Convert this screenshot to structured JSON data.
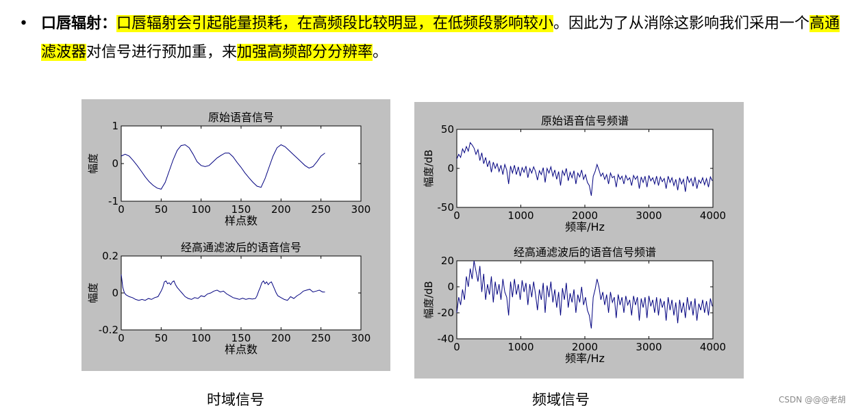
{
  "bullet": {
    "symbol": "•",
    "term": "口唇辐射",
    "colon": "：",
    "seg1_hl": "口唇辐射会引起能量损耗，在高频段比较明显，在低频段影响较小",
    "seg2": "。因此为了从消除这影响我们采用一个",
    "seg3_hl": "高通滤波器",
    "seg4": "对信号进行预加重，来",
    "seg5_hl": "加强高频部分分辨率",
    "seg6": "。"
  },
  "captions": {
    "time_domain": "时域信号",
    "freq_domain": "频域信号"
  },
  "watermark": "CSDN @@@老胡",
  "colors": {
    "panel_bg": "#c0c0c0",
    "line": "#00007f",
    "highlight": "#ffff00"
  },
  "chart_data": [
    {
      "type": "line",
      "title": "原始语音信号",
      "xlabel": "样点数",
      "ylabel": "幅度",
      "xlim": [
        0,
        300
      ],
      "ylim": [
        -1,
        1
      ],
      "xticks": [
        "0",
        "50",
        "100",
        "150",
        "200",
        "250",
        "300"
      ],
      "yticks": [
        "1",
        "0",
        "-1"
      ],
      "series": [
        {
          "x": [
            0,
            5,
            10,
            15,
            20,
            25,
            30,
            35,
            40,
            45,
            50,
            55,
            60,
            65,
            70,
            75,
            80,
            85,
            90,
            95,
            100,
            105,
            110,
            115,
            120,
            125,
            130,
            135,
            140,
            145,
            150,
            155,
            160,
            165,
            170,
            175,
            180,
            185,
            190,
            195,
            200,
            205,
            210,
            215,
            220,
            225,
            230,
            235,
            240,
            245,
            250,
            255
          ],
          "y": [
            0.2,
            0.25,
            0.2,
            0.08,
            -0.05,
            -0.2,
            -0.35,
            -0.48,
            -0.58,
            -0.65,
            -0.68,
            -0.5,
            -0.2,
            0.1,
            0.35,
            0.48,
            0.5,
            0.42,
            0.25,
            0.05,
            -0.05,
            -0.08,
            -0.05,
            0.05,
            0.15,
            0.22,
            0.28,
            0.28,
            0.18,
            0.03,
            -0.1,
            -0.25,
            -0.38,
            -0.5,
            -0.6,
            -0.63,
            -0.4,
            -0.1,
            0.2,
            0.42,
            0.5,
            0.45,
            0.35,
            0.25,
            0.15,
            0.05,
            -0.05,
            -0.12,
            -0.08,
            0.05,
            0.2,
            0.28
          ]
        }
      ]
    },
    {
      "type": "line",
      "title": "经高通滤波后的语音信号",
      "xlabel": "样点数",
      "ylabel": "幅度",
      "xlim": [
        0,
        300
      ],
      "ylim": [
        -0.2,
        0.2
      ],
      "xticks": [
        "0",
        "50",
        "100",
        "150",
        "200",
        "250",
        "300"
      ],
      "yticks": [
        "0.2",
        "0",
        "-0.2"
      ],
      "series": [
        {
          "x": [
            0,
            2,
            4,
            6,
            8,
            10,
            14,
            18,
            22,
            26,
            30,
            34,
            38,
            42,
            46,
            50,
            52,
            54,
            56,
            58,
            60,
            62,
            64,
            66,
            68,
            70,
            72,
            74,
            76,
            78,
            80,
            84,
            88,
            92,
            96,
            100,
            104,
            108,
            112,
            116,
            120,
            124,
            128,
            132,
            136,
            140,
            144,
            148,
            152,
            156,
            160,
            164,
            168,
            170,
            172,
            174,
            176,
            178,
            180,
            182,
            184,
            186,
            188,
            190,
            192,
            194,
            196,
            200,
            204,
            208,
            212,
            216,
            220,
            224,
            228,
            232,
            236,
            240,
            244,
            248,
            252,
            255
          ],
          "y": [
            0.1,
            0.03,
            0.0,
            -0.01,
            -0.015,
            -0.02,
            -0.025,
            -0.035,
            -0.04,
            -0.035,
            -0.04,
            -0.03,
            -0.035,
            -0.025,
            -0.02,
            0.01,
            0.03,
            0.06,
            0.065,
            0.05,
            0.055,
            0.045,
            0.06,
            0.065,
            0.045,
            0.03,
            0.02,
            0.01,
            0.0,
            -0.01,
            -0.02,
            -0.03,
            -0.035,
            -0.025,
            -0.03,
            -0.015,
            -0.02,
            -0.005,
            0.0,
            0.01,
            0.015,
            0.005,
            0.01,
            -0.005,
            -0.015,
            -0.025,
            -0.03,
            -0.035,
            -0.028,
            -0.035,
            -0.03,
            -0.033,
            -0.03,
            -0.015,
            0.01,
            0.03,
            0.055,
            0.065,
            0.05,
            0.06,
            0.045,
            0.055,
            0.06,
            0.04,
            0.02,
            0.0,
            -0.015,
            -0.025,
            -0.035,
            -0.04,
            -0.02,
            -0.03,
            -0.015,
            -0.005,
            0.01,
            0.015,
            0.02,
            0.005,
            0.01,
            0.015,
            0.005,
            0.005
          ]
        }
      ]
    },
    {
      "type": "line",
      "title": "原始语音信号频谱",
      "xlabel": "频率/Hz",
      "ylabel": "幅度/dB",
      "xlim": [
        0,
        4000
      ],
      "ylim": [
        -50,
        50
      ],
      "xticks": [
        "0",
        "1000",
        "2000",
        "3000",
        "4000"
      ],
      "yticks": [
        "50",
        "0",
        "-50"
      ],
      "series": [
        {
          "x": [
            0,
            30,
            60,
            90,
            120,
            150,
            180,
            210,
            240,
            270,
            300,
            330,
            360,
            390,
            420,
            450,
            480,
            510,
            540,
            570,
            600,
            630,
            660,
            690,
            720,
            750,
            780,
            810,
            840,
            870,
            900,
            930,
            960,
            990,
            1020,
            1050,
            1080,
            1110,
            1140,
            1170,
            1200,
            1230,
            1260,
            1290,
            1320,
            1350,
            1380,
            1410,
            1440,
            1470,
            1500,
            1530,
            1560,
            1590,
            1620,
            1650,
            1680,
            1710,
            1740,
            1770,
            1800,
            1830,
            1860,
            1890,
            1920,
            1950,
            1980,
            2010,
            2040,
            2070,
            2100,
            2130,
            2160,
            2190,
            2220,
            2250,
            2280,
            2310,
            2340,
            2370,
            2400,
            2430,
            2460,
            2490,
            2520,
            2550,
            2580,
            2610,
            2640,
            2670,
            2700,
            2730,
            2760,
            2790,
            2820,
            2850,
            2880,
            2910,
            2940,
            2970,
            3000,
            3030,
            3060,
            3090,
            3120,
            3150,
            3180,
            3210,
            3240,
            3270,
            3300,
            3330,
            3360,
            3390,
            3420,
            3450,
            3480,
            3510,
            3540,
            3570,
            3600,
            3630,
            3660,
            3690,
            3720,
            3750,
            3780,
            3810,
            3840,
            3870,
            3900,
            3930,
            3960,
            3990
          ],
          "y": [
            12,
            18,
            14,
            25,
            20,
            28,
            22,
            33,
            30,
            26,
            18,
            24,
            10,
            20,
            6,
            14,
            2,
            10,
            -5,
            8,
            0,
            6,
            -4,
            4,
            -8,
            5,
            -2,
            -20,
            3,
            -6,
            4,
            -8,
            2,
            -10,
            1,
            -5,
            3,
            -12,
            0,
            -6,
            2,
            -4,
            -15,
            -3,
            -8,
            1,
            -18,
            0,
            -6,
            2,
            -10,
            -2,
            -14,
            -4,
            -22,
            -3,
            -9,
            0,
            -16,
            -5,
            -12,
            -3,
            -20,
            -6,
            -11,
            -2,
            -14,
            -8,
            -18,
            -22,
            -35,
            -10,
            -4,
            5,
            -2,
            -10,
            -6,
            -14,
            -8,
            -20,
            -6,
            -12,
            -10,
            -24,
            -8,
            -14,
            -10,
            -20,
            -9,
            -15,
            -12,
            -22,
            -9,
            -14,
            -10,
            -26,
            -11,
            -18,
            -10,
            -24,
            -9,
            -16,
            -12,
            -20,
            -10,
            -22,
            -11,
            -17,
            -13,
            -26,
            -10,
            -18,
            -12,
            -22,
            -14,
            -28,
            -12,
            -20,
            -14,
            -30,
            -10,
            -18,
            -13,
            -23,
            -11,
            -26,
            -15,
            -19,
            -12,
            -21,
            -13,
            -24,
            -11,
            -16
          ]
        }
      ]
    },
    {
      "type": "line",
      "title": "经高通滤波后的语音信号频谱",
      "xlabel": "频率/Hz",
      "ylabel": "幅度/dB",
      "xlim": [
        0,
        4000
      ],
      "ylim": [
        -40,
        20
      ],
      "xticks": [
        "0",
        "1000",
        "2000",
        "3000",
        "4000"
      ],
      "yticks": [
        "20",
        "0",
        "-20",
        "-40"
      ],
      "series": [
        {
          "x": [
            0,
            30,
            60,
            90,
            120,
            150,
            180,
            210,
            240,
            270,
            300,
            330,
            360,
            390,
            420,
            450,
            480,
            510,
            540,
            570,
            600,
            630,
            660,
            690,
            720,
            750,
            780,
            810,
            840,
            870,
            900,
            930,
            960,
            990,
            1020,
            1050,
            1080,
            1110,
            1140,
            1170,
            1200,
            1230,
            1260,
            1290,
            1320,
            1350,
            1380,
            1410,
            1440,
            1470,
            1500,
            1530,
            1560,
            1590,
            1620,
            1650,
            1680,
            1710,
            1740,
            1770,
            1800,
            1830,
            1860,
            1890,
            1920,
            1950,
            1980,
            2010,
            2040,
            2070,
            2100,
            2130,
            2160,
            2190,
            2220,
            2250,
            2280,
            2310,
            2340,
            2370,
            2400,
            2430,
            2460,
            2490,
            2520,
            2550,
            2580,
            2610,
            2640,
            2670,
            2700,
            2730,
            2760,
            2790,
            2820,
            2850,
            2880,
            2910,
            2940,
            2970,
            3000,
            3030,
            3060,
            3090,
            3120,
            3150,
            3180,
            3210,
            3240,
            3270,
            3300,
            3330,
            3360,
            3390,
            3420,
            3450,
            3480,
            3510,
            3540,
            3570,
            3600,
            3630,
            3660,
            3690,
            3720,
            3750,
            3780,
            3810,
            3840,
            3870,
            3900,
            3930,
            3960,
            3990
          ],
          "y": [
            -20,
            -8,
            -14,
            -2,
            -10,
            8,
            0,
            14,
            6,
            20,
            12,
            4,
            16,
            -4,
            10,
            -10,
            2,
            -6,
            8,
            -12,
            4,
            -6,
            2,
            -10,
            6,
            -4,
            -8,
            -22,
            4,
            -8,
            6,
            -6,
            2,
            -10,
            5,
            -4,
            3,
            -14,
            2,
            -8,
            4,
            -6,
            -18,
            -2,
            -10,
            3,
            -20,
            1,
            -8,
            4,
            -12,
            -2,
            -16,
            -4,
            -22,
            -1,
            -10,
            3,
            -16,
            -5,
            -12,
            -2,
            -20,
            -6,
            -12,
            0,
            -14,
            -8,
            -18,
            -22,
            -32,
            -8,
            -2,
            6,
            0,
            -10,
            -4,
            -14,
            -6,
            -20,
            -4,
            -12,
            -8,
            -24,
            -6,
            -14,
            -8,
            -20,
            -7,
            -14,
            -10,
            -22,
            -7,
            -14,
            -8,
            -26,
            -9,
            -16,
            -8,
            -24,
            -7,
            -15,
            -10,
            -20,
            -8,
            -22,
            -9,
            -16,
            -11,
            -26,
            -8,
            -18,
            -10,
            -22,
            -12,
            -28,
            -10,
            -20,
            -12,
            -24,
            -8,
            -18,
            -11,
            -22,
            -9,
            -26,
            -13,
            -18,
            -10,
            -20,
            -11,
            -22,
            -9,
            -15
          ]
        }
      ]
    }
  ]
}
